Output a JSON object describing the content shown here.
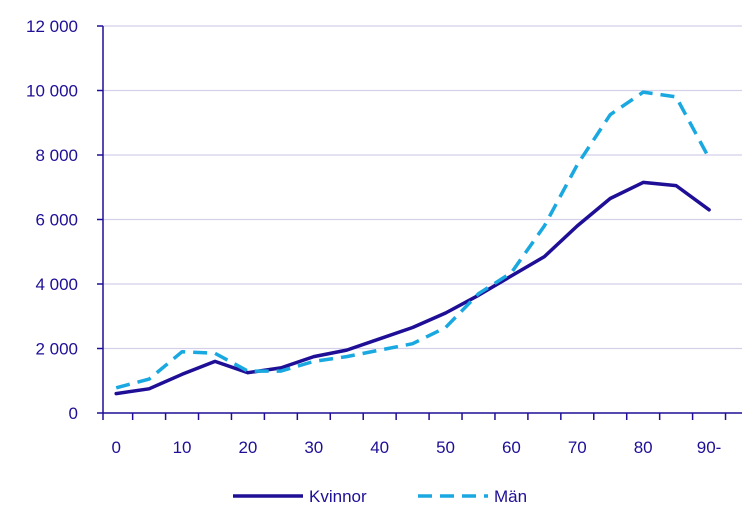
{
  "chart_data": {
    "type": "line",
    "title": "",
    "xlabel": "",
    "ylabel": "",
    "x": [
      0,
      5,
      10,
      15,
      20,
      25,
      30,
      35,
      40,
      45,
      50,
      55,
      60,
      65,
      70,
      75,
      80,
      85,
      90
    ],
    "x_tick_labels": [
      "0",
      "10",
      "20",
      "30",
      "40",
      "50",
      "60",
      "70",
      "80",
      "90-"
    ],
    "x_tick_values": [
      0,
      10,
      20,
      30,
      40,
      50,
      60,
      70,
      80,
      90
    ],
    "y_tick_labels": [
      "0",
      "2 000",
      "4 000",
      "6 000",
      "8 000",
      "10 000",
      "12 000"
    ],
    "y_tick_values": [
      0,
      2000,
      4000,
      6000,
      8000,
      10000,
      12000
    ],
    "ylim": [
      0,
      12000
    ],
    "xlim": [
      -2,
      95
    ],
    "grid": "horizontal",
    "legend_position": "bottom-center",
    "series": [
      {
        "name": "Kvinnor",
        "color": "#1e0f96",
        "dash": "solid",
        "values": [
          600,
          750,
          1200,
          1600,
          1250,
          1400,
          1750,
          1950,
          2300,
          2650,
          3100,
          3650,
          4250,
          4850,
          5800,
          6650,
          7150,
          7050,
          6300
        ]
      },
      {
        "name": "Män",
        "color": "#1aa8e0",
        "dash": "dashed",
        "values": [
          780,
          1050,
          1900,
          1850,
          1300,
          1300,
          1600,
          1750,
          1950,
          2150,
          2650,
          3700,
          4350,
          5800,
          7700,
          9250,
          9950,
          9800,
          7900
        ]
      }
    ]
  }
}
